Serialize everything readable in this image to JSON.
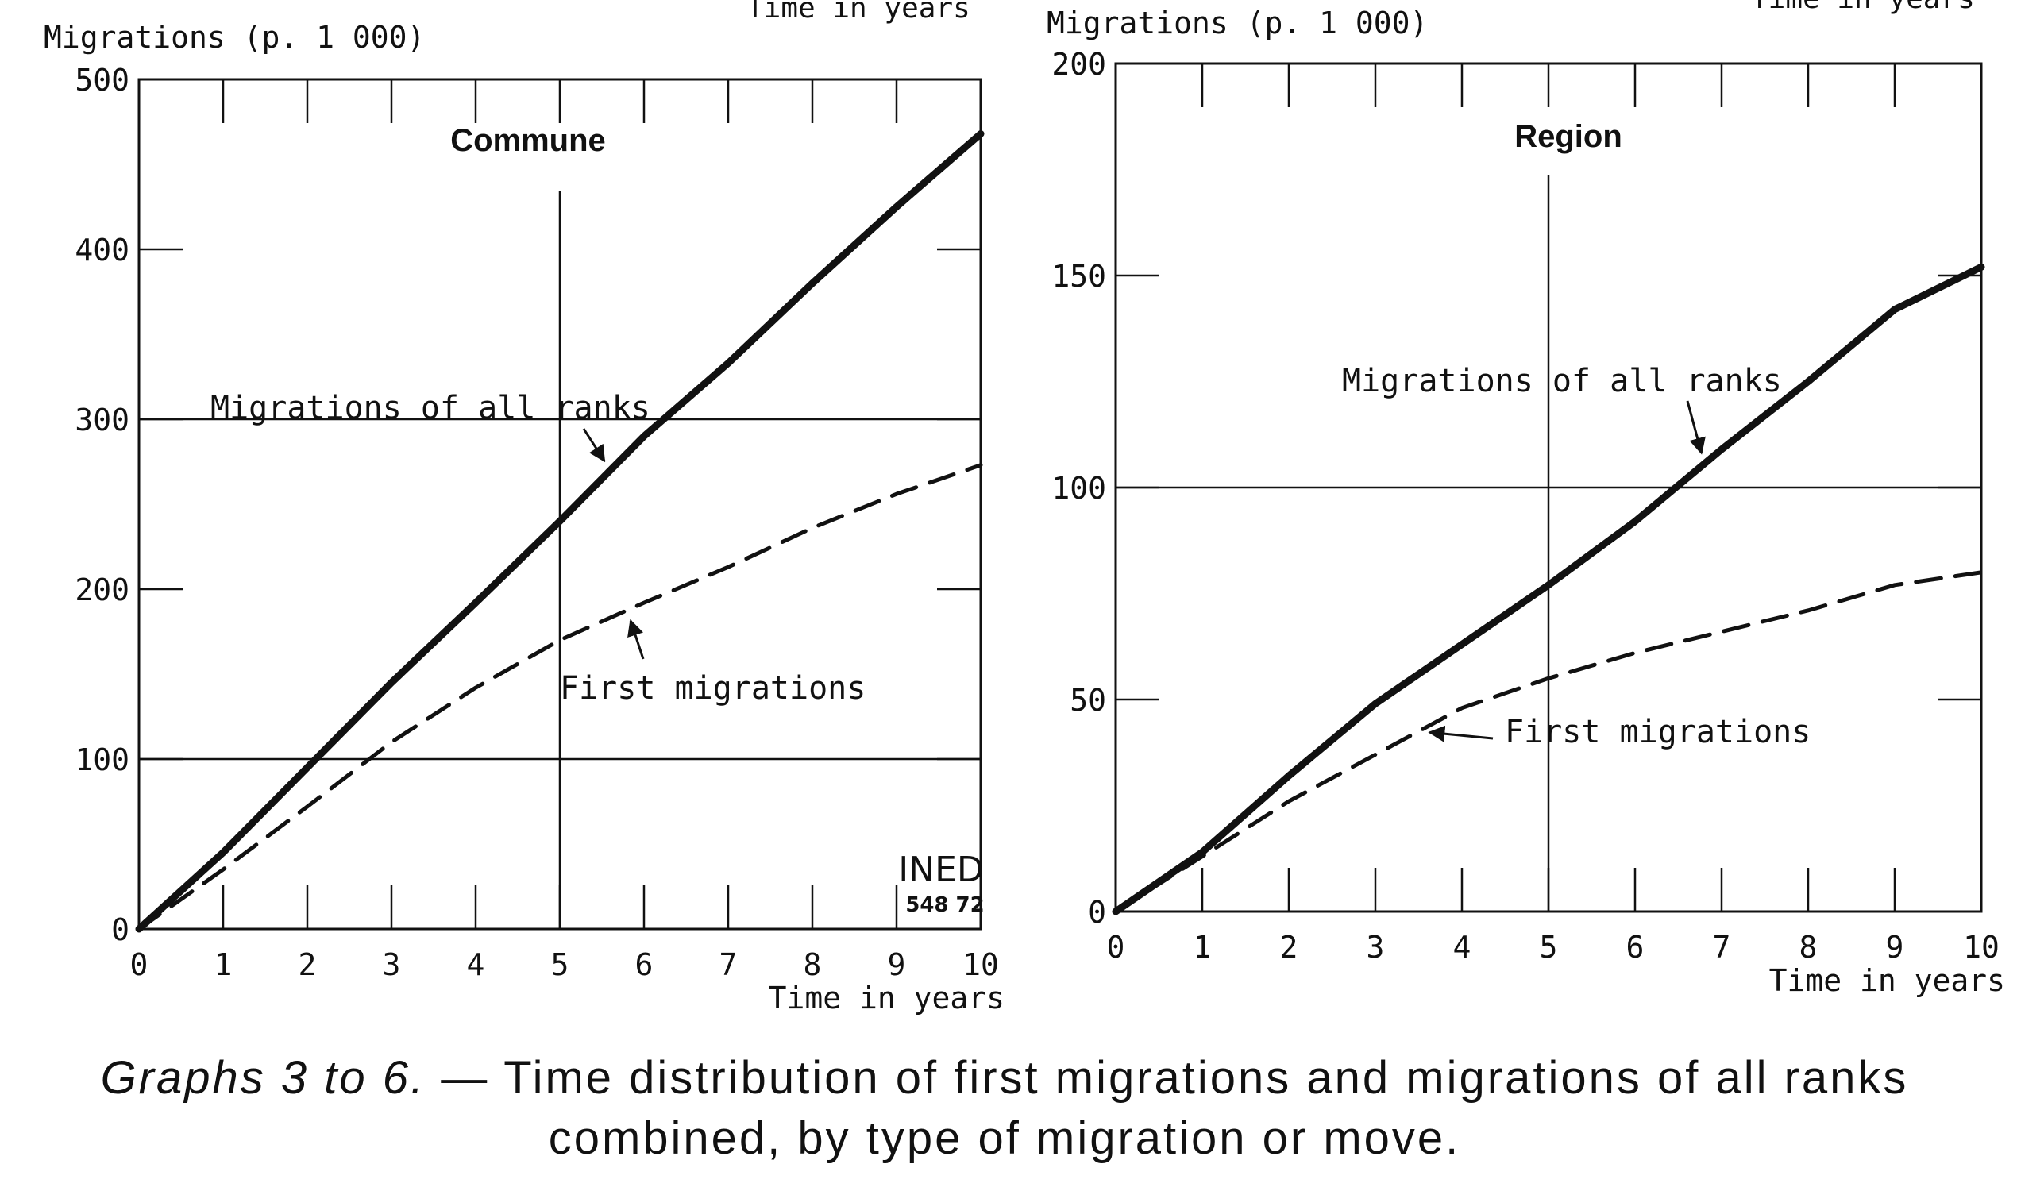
{
  "caption": {
    "lead": "Graphs 3 to 6.",
    "text": " — Time distribution of first migrations and migrations of all ranks combined, by type of migration or move."
  },
  "colors": {
    "ink": "#111111",
    "paper": "#ffffff"
  },
  "chart_data": [
    {
      "type": "line",
      "title": "Commune",
      "ylabel": "Migrations (p. 1 000)",
      "xlabel": "Time in years",
      "top_xlabel": "Time in years",
      "x": [
        0,
        1,
        2,
        3,
        4,
        5,
        6,
        7,
        8,
        9,
        10
      ],
      "xlim": [
        0,
        10
      ],
      "ylim": [
        0,
        500
      ],
      "yticks": [
        0,
        100,
        200,
        300,
        400,
        500
      ],
      "ytick_labels": [
        "0",
        "100",
        "200",
        "300",
        "400",
        "500"
      ],
      "xtick_labels": [
        "0",
        "1",
        "2",
        "3",
        "4",
        "5",
        "6",
        "7",
        "8",
        "9",
        "10"
      ],
      "grid": "x=5, y=100, y=300",
      "series": [
        {
          "name": "Migrations of all ranks",
          "style": "solid",
          "values": [
            0,
            45,
            95,
            145,
            192,
            240,
            290,
            333,
            380,
            425,
            468
          ]
        },
        {
          "name": "First migrations",
          "style": "dashed",
          "values": [
            0,
            35,
            72,
            110,
            142,
            170,
            192,
            213,
            236,
            256,
            273
          ]
        }
      ],
      "annotations": [
        {
          "text": "Migrations of all ranks",
          "points_to": "Migrations of all ranks",
          "at_x": 5.6
        },
        {
          "text": "First migrations",
          "points_to": "First migrations",
          "at_x": 5.8
        }
      ],
      "stamp": {
        "text": "INED",
        "number": "548 72"
      }
    },
    {
      "type": "line",
      "title": "Region",
      "ylabel": "Migrations (p. 1 000)",
      "xlabel": "Time in years",
      "top_xlabel": "Time in years",
      "x": [
        0,
        1,
        2,
        3,
        4,
        5,
        6,
        7,
        8,
        9,
        10
      ],
      "xlim": [
        0,
        10
      ],
      "ylim": [
        0,
        200
      ],
      "yticks": [
        0,
        50,
        100,
        150,
        200
      ],
      "ytick_labels": [
        "0",
        "50",
        "100",
        "150",
        "200"
      ],
      "xtick_labels": [
        "0",
        "1",
        "2",
        "3",
        "4",
        "5",
        "6",
        "7",
        "8",
        "9",
        "10"
      ],
      "grid": "x=5, y=100",
      "series": [
        {
          "name": "Migrations of all ranks",
          "style": "solid",
          "values": [
            0,
            14,
            32,
            49,
            63,
            77,
            92,
            109,
            125,
            142,
            152
          ]
        },
        {
          "name": "First migrations",
          "style": "dashed",
          "values": [
            0,
            13,
            26,
            37,
            48,
            55,
            61,
            66,
            71,
            77,
            80
          ]
        }
      ],
      "annotations": [
        {
          "text": "Migrations of all ranks",
          "points_to": "Migrations of all ranks",
          "at_x": 6.8
        },
        {
          "text": "First migrations",
          "points_to": "First migrations",
          "at_x": 3.5
        }
      ]
    }
  ]
}
